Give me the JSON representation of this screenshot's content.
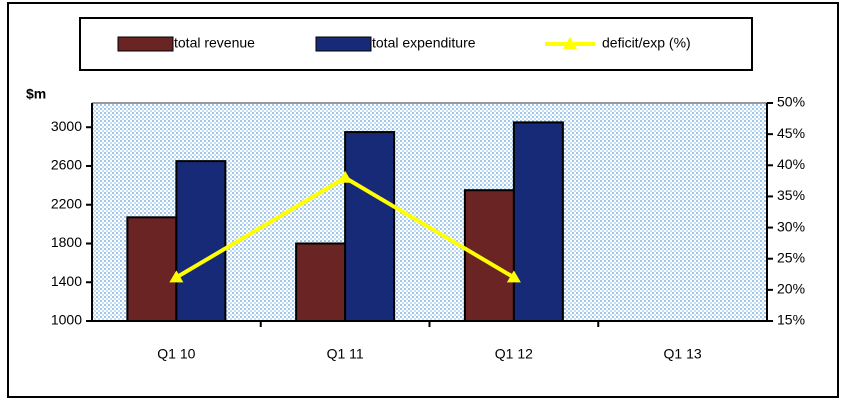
{
  "chart_data": {
    "type": "bar",
    "y_label": "$m",
    "categories": [
      "Q1 10",
      "Q1 11",
      "Q1 12",
      "Q1 13"
    ],
    "series": [
      {
        "name": "total revenue",
        "color": "#6b2424",
        "values": [
          2070,
          1800,
          2350,
          null
        ]
      },
      {
        "name": "total expenditure",
        "color": "#172a78",
        "values": [
          2650,
          2950,
          3050,
          null
        ]
      },
      {
        "name": "deficit/exp (%)",
        "color": "#ffff00",
        "type": "line",
        "axis": "y2",
        "values": [
          22,
          38,
          22,
          null
        ]
      }
    ],
    "ylim": [
      1000,
      3250
    ],
    "yticks": [
      1000,
      1400,
      1800,
      2200,
      2600,
      3000
    ],
    "y2lim": [
      15,
      50
    ],
    "y2ticks": [
      {
        "value": 15,
        "label": "15%"
      },
      {
        "value": 20,
        "label": "20%"
      },
      {
        "value": 25,
        "label": "25%"
      },
      {
        "value": 30,
        "label": "30%"
      },
      {
        "value": 35,
        "label": "35%"
      },
      {
        "value": 40,
        "label": "40%"
      },
      {
        "value": 45,
        "label": "45%"
      },
      {
        "value": 50,
        "label": "50%"
      }
    ],
    "legend": "top",
    "grid": false
  }
}
